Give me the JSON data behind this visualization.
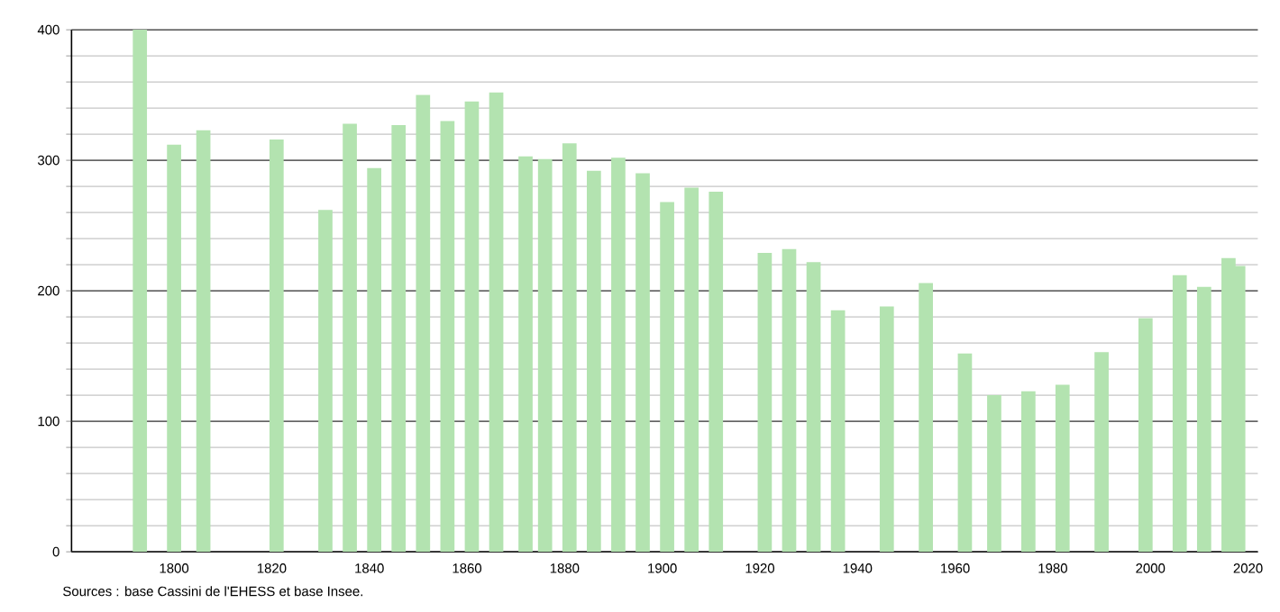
{
  "chart_data": {
    "type": "bar",
    "color": "#b3e3b0",
    "x": [
      1793,
      1800,
      1806,
      1821,
      1831,
      1836,
      1841,
      1846,
      1851,
      1856,
      1861,
      1866,
      1872,
      1876,
      1881,
      1886,
      1891,
      1896,
      1901,
      1906,
      1911,
      1921,
      1926,
      1931,
      1936,
      1946,
      1954,
      1962,
      1968,
      1975,
      1982,
      1990,
      1999,
      2006,
      2011,
      2016,
      2018
    ],
    "values": [
      400,
      312,
      323,
      316,
      262,
      328,
      294,
      327,
      350,
      330,
      345,
      352,
      303,
      301,
      313,
      292,
      302,
      290,
      268,
      279,
      276,
      229,
      232,
      222,
      185,
      188,
      206,
      152,
      120,
      123,
      128,
      153,
      179,
      212,
      203,
      225,
      219
    ],
    "xlim": [
      1779,
      2022
    ],
    "ylim": [
      0,
      400
    ],
    "xticks": [
      1800,
      1820,
      1840,
      1860,
      1880,
      1900,
      1920,
      1940,
      1960,
      1980,
      2000,
      2020
    ],
    "yticks": [
      0,
      {
        "value": 20,
        "label": null
      },
      {
        "value": 40,
        "label": null
      },
      {
        "value": 60,
        "label": null
      },
      {
        "value": 80,
        "label": null
      },
      100,
      {
        "value": 120,
        "label": null
      },
      {
        "value": 140,
        "label": null
      },
      {
        "value": 160,
        "label": null
      },
      {
        "value": 180,
        "label": null
      },
      200,
      {
        "value": 220,
        "label": null
      },
      {
        "value": 240,
        "label": null
      },
      {
        "value": 260,
        "label": null
      },
      {
        "value": 280,
        "label": null
      },
      300,
      {
        "value": 320,
        "label": null
      },
      {
        "value": 340,
        "label": null
      },
      {
        "value": 360,
        "label": null
      },
      {
        "value": 380,
        "label": null
      },
      400
    ],
    "grid": "y",
    "annotations": [
      "Sources : base Cassini de l'EHESS et base Insee."
    ]
  }
}
